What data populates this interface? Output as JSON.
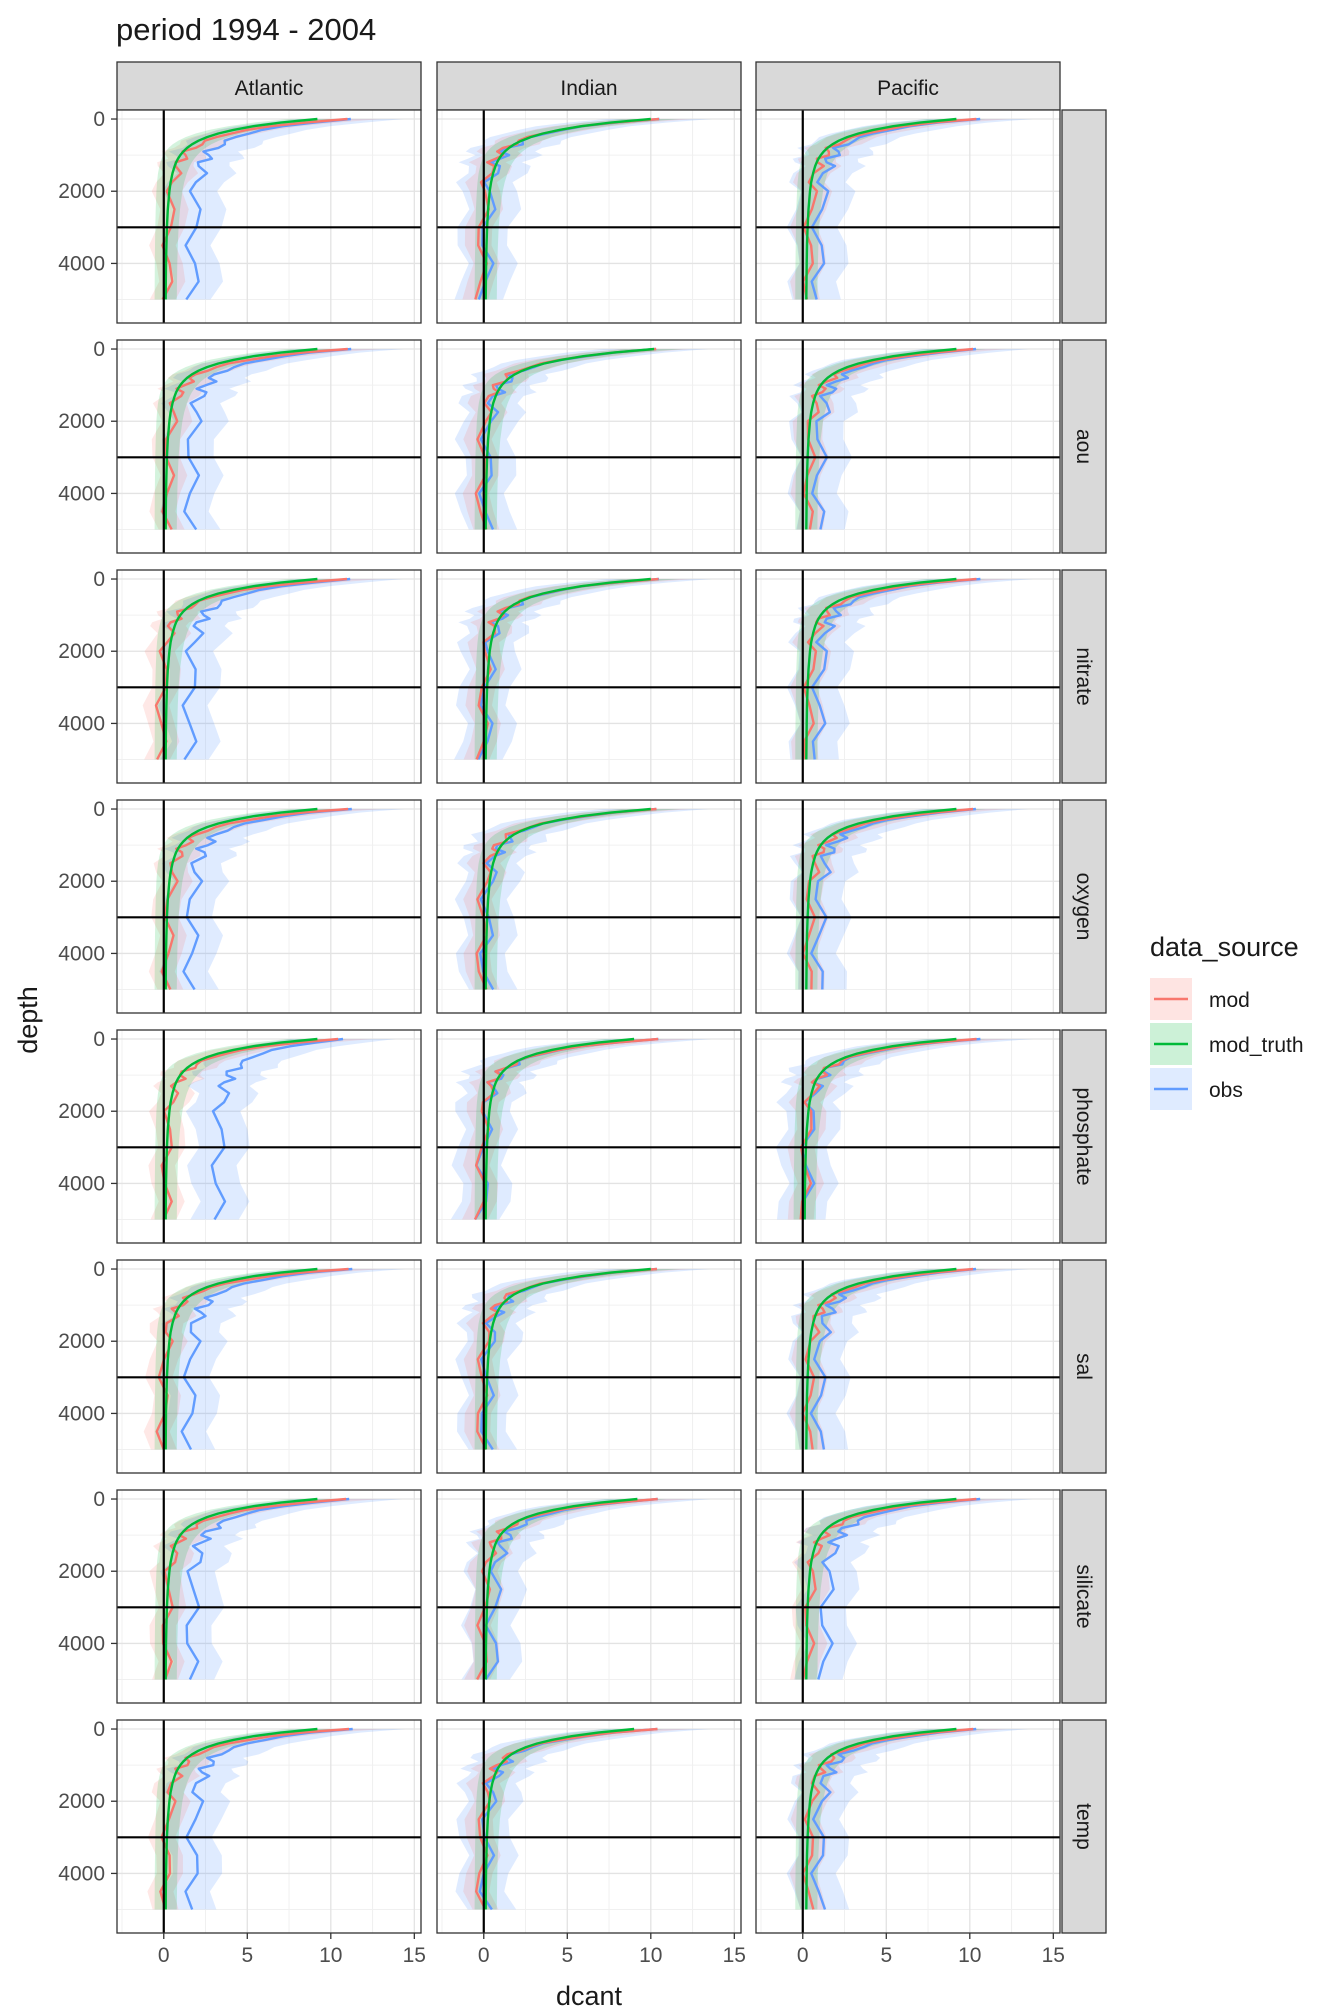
{
  "chart_data": {
    "type": "line",
    "title": "period 1994 - 2004",
    "xlabel": "dcant",
    "ylabel": "depth",
    "xlim": [
      -2.8,
      15.4
    ],
    "ylim": [
      -250,
      5650
    ],
    "x_ticks": [
      0,
      5,
      10,
      15
    ],
    "y_ticks": [
      0,
      2000,
      4000
    ],
    "y_reversed": true,
    "grid": true,
    "facet_columns": [
      "Atlantic",
      "Indian",
      "Pacific"
    ],
    "facet_rows": [
      "",
      "aou",
      "nitrate",
      "oxygen",
      "phosphate",
      "sal",
      "silicate",
      "temp"
    ],
    "reference_lines": {
      "vertical_x": 0,
      "horizontal_depth": 3000
    },
    "legend": {
      "title": "data_source",
      "position": "right",
      "entries": [
        "mod",
        "mod_truth",
        "obs"
      ]
    },
    "colors": {
      "mod": "#F8766D",
      "mod_truth": "#00BA38",
      "obs": "#619CFF"
    },
    "depth_levels": [
      0,
      100,
      200,
      300,
      400,
      500,
      600,
      700,
      800,
      900,
      1000,
      1100,
      1200,
      1300,
      1500,
      1750,
      2000,
      2500,
      3000,
      3500,
      4000,
      4500,
      5000,
      5500
    ],
    "panels": [
      {
        "basin": "Atlantic",
        "predictor": "",
        "mod_truth": {
          "surface": 9.2,
          "deep": 0.1,
          "max_depth": 5300
        },
        "mod": {
          "surface": 11.0,
          "deep": 0.2,
          "max_depth": 5300
        },
        "obs": {
          "surface": 11.2,
          "deep": 1.7,
          "max_depth": 5400
        }
      },
      {
        "basin": "Indian",
        "predictor": "",
        "mod_truth": {
          "surface": 10.0,
          "deep": 0.1,
          "max_depth": 5300
        },
        "mod": {
          "surface": 10.4,
          "deep": -0.2,
          "max_depth": 5400
        },
        "obs": {
          "surface": 10.4,
          "deep": 0.1,
          "max_depth": 5300
        }
      },
      {
        "basin": "Pacific",
        "predictor": "",
        "mod_truth": {
          "surface": 9.2,
          "deep": 0.2,
          "max_depth": 5400
        },
        "mod": {
          "surface": 10.3,
          "deep": 0.3,
          "max_depth": 5400
        },
        "obs": {
          "surface": 10.5,
          "deep": 0.9,
          "max_depth": 5300
        }
      },
      {
        "basin": "Atlantic",
        "predictor": "aou",
        "mod_truth": {
          "surface": 9.2,
          "deep": 0.1,
          "max_depth": 5300
        },
        "mod": {
          "surface": 11.0,
          "deep": 0.2,
          "max_depth": 5300
        },
        "obs": {
          "surface": 11.2,
          "deep": 1.6,
          "max_depth": 5400
        }
      },
      {
        "basin": "Indian",
        "predictor": "aou",
        "mod_truth": {
          "surface": 10.2,
          "deep": 0.1,
          "max_depth": 5300
        },
        "mod": {
          "surface": 10.4,
          "deep": -0.2,
          "max_depth": 5400
        },
        "obs": {
          "surface": 10.4,
          "deep": 0.1,
          "max_depth": 5300
        }
      },
      {
        "basin": "Pacific",
        "predictor": "aou",
        "mod_truth": {
          "surface": 9.2,
          "deep": 0.2,
          "max_depth": 5400
        },
        "mod": {
          "surface": 10.3,
          "deep": 0.3,
          "max_depth": 5400
        },
        "obs": {
          "surface": 10.5,
          "deep": 0.9,
          "max_depth": 5300
        }
      },
      {
        "basin": "Atlantic",
        "predictor": "nitrate",
        "mod_truth": {
          "surface": 9.2,
          "deep": 0.1,
          "max_depth": 5300
        },
        "mod": {
          "surface": 11.0,
          "deep": -0.2,
          "max_depth": 5300
        },
        "obs": {
          "surface": 11.2,
          "deep": 1.5,
          "max_depth": 5400
        }
      },
      {
        "basin": "Indian",
        "predictor": "nitrate",
        "mod_truth": {
          "surface": 10.0,
          "deep": 0.1,
          "max_depth": 5300
        },
        "mod": {
          "surface": 10.4,
          "deep": -0.1,
          "max_depth": 5400
        },
        "obs": {
          "surface": 10.4,
          "deep": 0.1,
          "max_depth": 5300
        }
      },
      {
        "basin": "Pacific",
        "predictor": "nitrate",
        "mod_truth": {
          "surface": 9.2,
          "deep": 0.2,
          "max_depth": 5400
        },
        "mod": {
          "surface": 10.3,
          "deep": 0.3,
          "max_depth": 5400
        },
        "obs": {
          "surface": 10.5,
          "deep": 0.9,
          "max_depth": 5300
        }
      },
      {
        "basin": "Atlantic",
        "predictor": "oxygen",
        "mod_truth": {
          "surface": 9.2,
          "deep": 0.1,
          "max_depth": 5300
        },
        "mod": {
          "surface": 11.0,
          "deep": 0.2,
          "max_depth": 5300
        },
        "obs": {
          "surface": 11.2,
          "deep": 1.6,
          "max_depth": 5400
        }
      },
      {
        "basin": "Indian",
        "predictor": "oxygen",
        "mod_truth": {
          "surface": 10.0,
          "deep": 0.1,
          "max_depth": 5300
        },
        "mod": {
          "surface": 10.4,
          "deep": -0.2,
          "max_depth": 5400
        },
        "obs": {
          "surface": 10.4,
          "deep": 0.1,
          "max_depth": 5300
        }
      },
      {
        "basin": "Pacific",
        "predictor": "oxygen",
        "mod_truth": {
          "surface": 9.2,
          "deep": 0.2,
          "max_depth": 5400
        },
        "mod": {
          "surface": 10.3,
          "deep": 0.3,
          "max_depth": 5400
        },
        "obs": {
          "surface": 10.5,
          "deep": 0.9,
          "max_depth": 5300
        }
      },
      {
        "basin": "Atlantic",
        "predictor": "phosphate",
        "mod_truth": {
          "surface": 9.2,
          "deep": 0.1,
          "max_depth": 5300
        },
        "mod": {
          "surface": 10.5,
          "deep": 0.1,
          "max_depth": 5300
        },
        "obs": {
          "surface": 10.8,
          "deep": 3.2,
          "max_depth": 5300
        }
      },
      {
        "basin": "Indian",
        "predictor": "phosphate",
        "mod_truth": {
          "surface": 9.0,
          "deep": 0.1,
          "max_depth": 5300
        },
        "mod": {
          "surface": 10.4,
          "deep": -0.2,
          "max_depth": 5400
        },
        "obs": {
          "surface": 10.4,
          "deep": -0.1,
          "max_depth": 5300
        }
      },
      {
        "basin": "Pacific",
        "predictor": "phosphate",
        "mod_truth": {
          "surface": 9.2,
          "deep": 0.1,
          "max_depth": 5400
        },
        "mod": {
          "surface": 10.3,
          "deep": 0.1,
          "max_depth": 5400
        },
        "obs": {
          "surface": 10.5,
          "deep": 0.2,
          "max_depth": 5300
        }
      },
      {
        "basin": "Atlantic",
        "predictor": "sal",
        "mod_truth": {
          "surface": 9.2,
          "deep": 0.1,
          "max_depth": 5300
        },
        "mod": {
          "surface": 11.0,
          "deep": -0.1,
          "max_depth": 5300
        },
        "obs": {
          "surface": 11.2,
          "deep": 1.5,
          "max_depth": 5400
        }
      },
      {
        "basin": "Indian",
        "predictor": "sal",
        "mod_truth": {
          "surface": 10.0,
          "deep": 0.1,
          "max_depth": 5300
        },
        "mod": {
          "surface": 10.4,
          "deep": -0.2,
          "max_depth": 5400
        },
        "obs": {
          "surface": 10.4,
          "deep": 0.1,
          "max_depth": 5300
        }
      },
      {
        "basin": "Pacific",
        "predictor": "sal",
        "mod_truth": {
          "surface": 9.2,
          "deep": 0.2,
          "max_depth": 5400
        },
        "mod": {
          "surface": 10.3,
          "deep": 0.3,
          "max_depth": 5400
        },
        "obs": {
          "surface": 10.5,
          "deep": 0.9,
          "max_depth": 5300
        }
      },
      {
        "basin": "Atlantic",
        "predictor": "silicate",
        "mod_truth": {
          "surface": 9.2,
          "deep": 0.1,
          "max_depth": 5300
        },
        "mod": {
          "surface": 11.0,
          "deep": 0.1,
          "max_depth": 5300
        },
        "obs": {
          "surface": 11.2,
          "deep": 1.6,
          "max_depth": 5400
        }
      },
      {
        "basin": "Indian",
        "predictor": "silicate",
        "mod_truth": {
          "surface": 9.2,
          "deep": 0.1,
          "max_depth": 5300
        },
        "mod": {
          "surface": 10.4,
          "deep": -0.1,
          "max_depth": 5400
        },
        "obs": {
          "surface": 10.4,
          "deep": 0.5,
          "max_depth": 5300
        }
      },
      {
        "basin": "Pacific",
        "predictor": "silicate",
        "mod_truth": {
          "surface": 9.2,
          "deep": 0.2,
          "max_depth": 5400
        },
        "mod": {
          "surface": 10.3,
          "deep": 0.3,
          "max_depth": 5400
        },
        "obs": {
          "surface": 10.5,
          "deep": 1.3,
          "max_depth": 5300
        }
      },
      {
        "basin": "Atlantic",
        "predictor": "temp",
        "mod_truth": {
          "surface": 9.2,
          "deep": 0.1,
          "max_depth": 5300
        },
        "mod": {
          "surface": 11.0,
          "deep": 0.1,
          "max_depth": 5300
        },
        "obs": {
          "surface": 11.2,
          "deep": 1.7,
          "max_depth": 5400
        }
      },
      {
        "basin": "Indian",
        "predictor": "temp",
        "mod_truth": {
          "surface": 9.0,
          "deep": 0.1,
          "max_depth": 5300
        },
        "mod": {
          "surface": 10.4,
          "deep": -0.2,
          "max_depth": 5400
        },
        "obs": {
          "surface": 10.4,
          "deep": 0.1,
          "max_depth": 5300
        }
      },
      {
        "basin": "Pacific",
        "predictor": "temp",
        "mod_truth": {
          "surface": 9.2,
          "deep": 0.2,
          "max_depth": 5400
        },
        "mod": {
          "surface": 10.3,
          "deep": 0.3,
          "max_depth": 5400
        },
        "obs": {
          "surface": 10.5,
          "deep": 0.9,
          "max_depth": 5300
        }
      }
    ]
  }
}
